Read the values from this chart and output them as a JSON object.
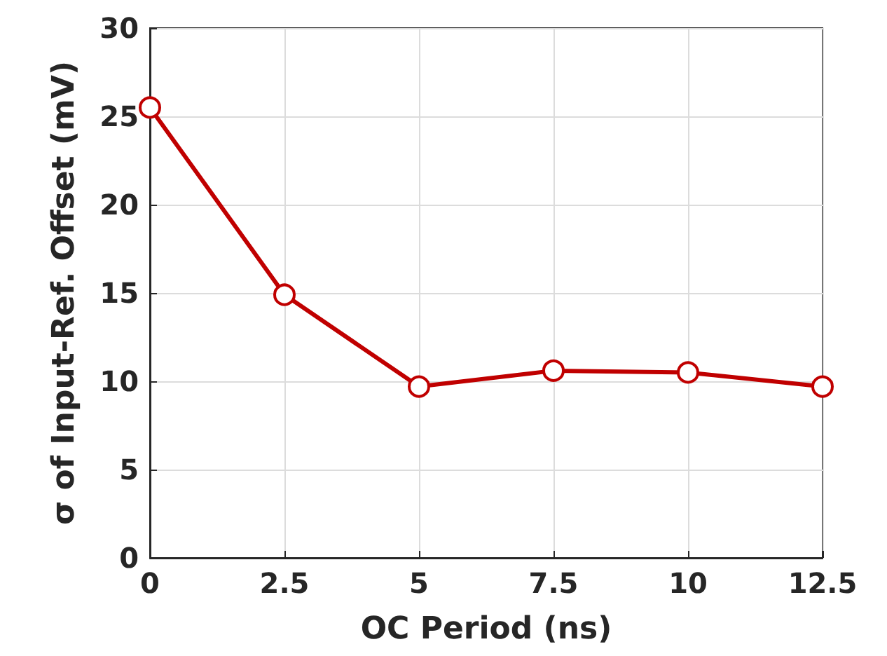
{
  "chart_data": {
    "type": "line",
    "xlabel": "OC Period (ns)",
    "ylabel": "σ of Input-Ref. Offset (mV)",
    "x": [
      0,
      2.5,
      5,
      7.5,
      10,
      12.5
    ],
    "series": [
      {
        "color": "#c00000",
        "values": [
          25.5,
          14.9,
          9.7,
          10.6,
          10.5,
          9.7
        ]
      }
    ],
    "xlim": [
      0,
      12.5
    ],
    "xticks": [
      0,
      2.5,
      5,
      7.5,
      10,
      12.5
    ],
    "ylim": [
      0,
      30
    ],
    "yticks": [
      0,
      5,
      10,
      15,
      20,
      25,
      30
    ],
    "grid": true,
    "marker": "circle",
    "line_style": "solid"
  }
}
